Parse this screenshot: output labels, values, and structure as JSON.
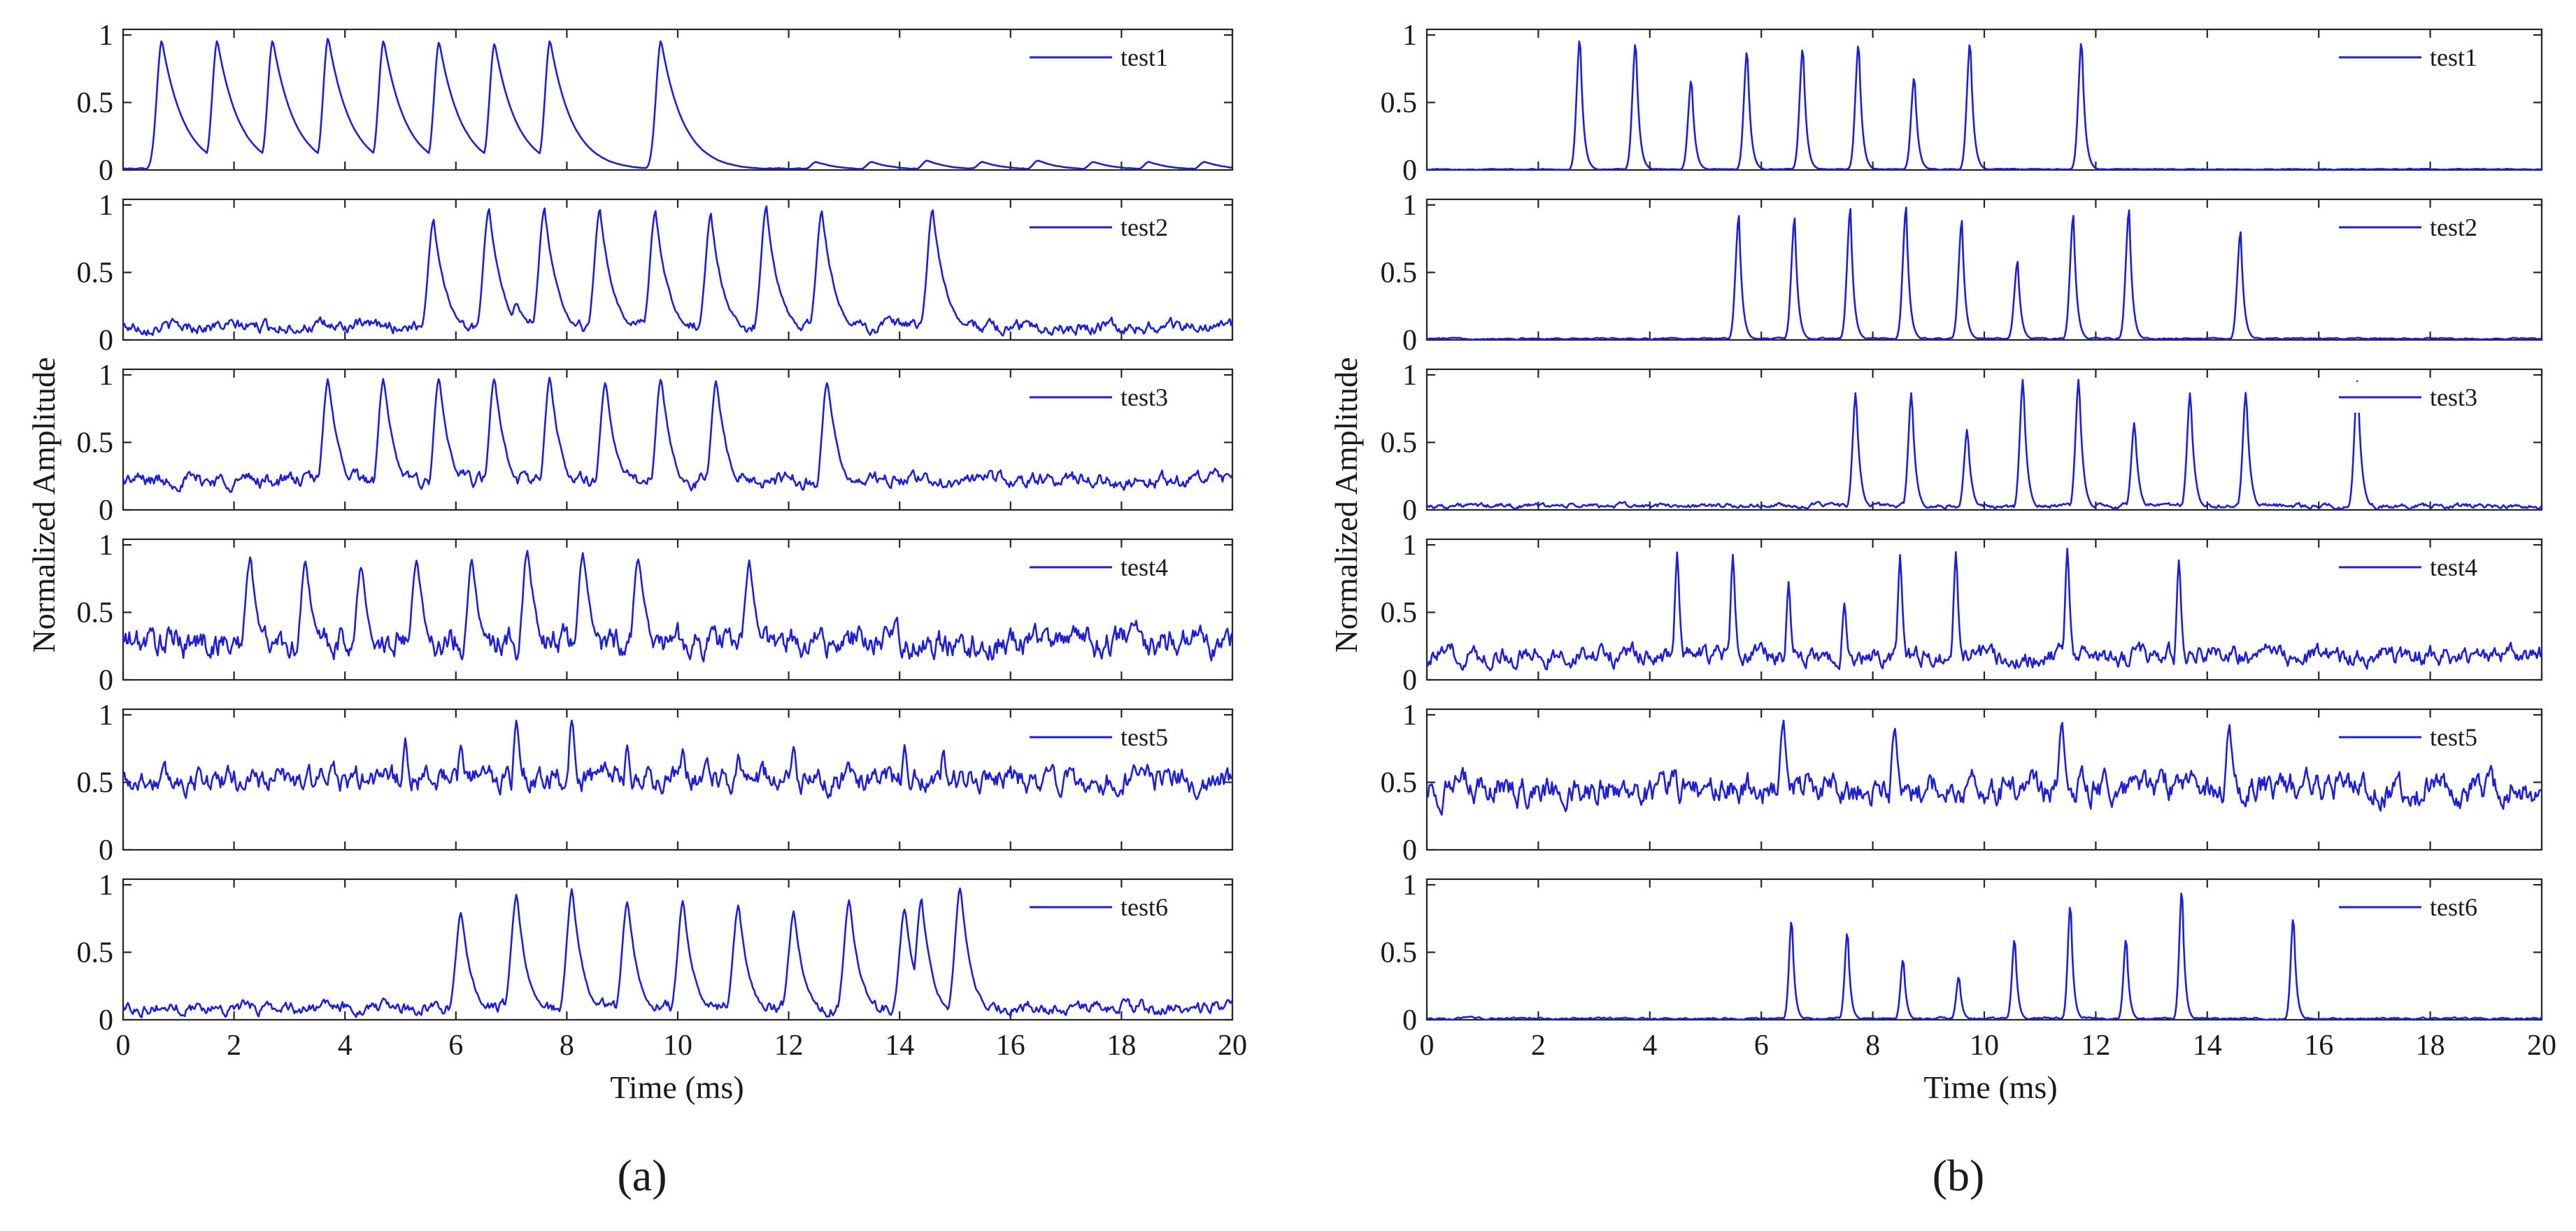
{
  "figure": {
    "panel_labels": [
      "(a)",
      "(b)"
    ],
    "ylabel": "Normalized Amplitude",
    "xlabel": "Time (ms)"
  },
  "chart_data": [
    {
      "type": "line",
      "panel": "(a)",
      "xlabel": "Time (ms)",
      "ylabel": "Normalized Amplitude",
      "xlim": [
        0,
        20
      ],
      "ylim": [
        0,
        1
      ],
      "x_ticks": [
        0,
        2,
        4,
        6,
        8,
        10,
        12,
        14,
        16,
        18,
        20
      ],
      "y_ticks": [
        0,
        0.5,
        1
      ],
      "legend_location": "top-right",
      "series": [
        {
          "name": "test1",
          "baseline": 0.01,
          "noise": 0.004,
          "lead": 0.2,
          "decay": 0.4,
          "width": 0.09,
          "peaks": [
            [
              0.7,
              0.96
            ],
            [
              1.7,
              0.96
            ],
            [
              2.7,
              0.96
            ],
            [
              3.7,
              0.98
            ],
            [
              4.7,
              0.96
            ],
            [
              5.7,
              0.95
            ],
            [
              6.7,
              0.94
            ],
            [
              7.7,
              0.96
            ],
            [
              9.7,
              0.96
            ],
            [
              12.5,
              0.06
            ],
            [
              13.5,
              0.06
            ],
            [
              14.5,
              0.07
            ],
            [
              15.5,
              0.06
            ],
            [
              16.5,
              0.07
            ],
            [
              17.5,
              0.06
            ],
            [
              18.5,
              0.06
            ],
            [
              19.5,
              0.06
            ]
          ]
        },
        {
          "name": "test2",
          "baseline": 0.1,
          "noise": 0.05,
          "lead": 0.4,
          "decay": 0.25,
          "width": 0.1,
          "peaks": [
            [
              5.6,
              0.89
            ],
            [
              6.6,
              0.98
            ],
            [
              7.1,
              0.28
            ],
            [
              7.6,
              0.98
            ],
            [
              8.6,
              0.97
            ],
            [
              9.6,
              0.96
            ],
            [
              10.6,
              0.92
            ],
            [
              11.6,
              0.98
            ],
            [
              12.6,
              0.96
            ],
            [
              14.6,
              0.96
            ]
          ]
        },
        {
          "name": "test3",
          "baseline": 0.22,
          "noise": 0.06,
          "lead": 0.4,
          "decay": 0.25,
          "width": 0.1,
          "peaks": [
            [
              3.7,
              0.98
            ],
            [
              4.7,
              0.97
            ],
            [
              5.7,
              0.97
            ],
            [
              6.7,
              0.98
            ],
            [
              7.7,
              0.97
            ],
            [
              8.7,
              0.96
            ],
            [
              9.7,
              0.98
            ],
            [
              10.7,
              0.96
            ],
            [
              12.7,
              0.96
            ]
          ]
        },
        {
          "name": "test4",
          "baseline": 0.28,
          "noise": 0.12,
          "lead": 0.3,
          "decay": 0.2,
          "width": 0.1,
          "peaks": [
            [
              2.3,
              0.9
            ],
            [
              3.3,
              0.88
            ],
            [
              4.3,
              0.85
            ],
            [
              5.3,
              0.9
            ],
            [
              6.3,
              0.9
            ],
            [
              7.3,
              0.97
            ],
            [
              8.3,
              0.95
            ],
            [
              9.3,
              0.93
            ],
            [
              11.3,
              0.88
            ]
          ]
        },
        {
          "name": "test5",
          "baseline": 0.52,
          "noise": 0.1,
          "lead": 0.3,
          "decay": 0.15,
          "width": 0.08,
          "peaks": [
            [
              5.1,
              0.82
            ],
            [
              6.1,
              0.8
            ],
            [
              7.1,
              0.98
            ],
            [
              8.1,
              0.98
            ],
            [
              9.1,
              0.78
            ],
            [
              10.1,
              0.75
            ],
            [
              11.1,
              0.72
            ],
            [
              12.1,
              0.78
            ],
            [
              14.1,
              0.8
            ],
            [
              14.8,
              0.75
            ]
          ]
        },
        {
          "name": "test6",
          "baseline": 0.09,
          "noise": 0.05,
          "lead": 0.35,
          "decay": 0.2,
          "width": 0.1,
          "peaks": [
            [
              6.1,
              0.8
            ],
            [
              7.1,
              0.92
            ],
            [
              8.1,
              0.97
            ],
            [
              9.1,
              0.88
            ],
            [
              10.1,
              0.88
            ],
            [
              11.1,
              0.85
            ],
            [
              12.1,
              0.8
            ],
            [
              13.1,
              0.9
            ],
            [
              14.1,
              0.82
            ],
            [
              14.4,
              0.88
            ],
            [
              15.1,
              0.98
            ]
          ]
        }
      ]
    },
    {
      "type": "line",
      "panel": "(b)",
      "xlabel": "Time (ms)",
      "ylabel": "Normalized Amplitude",
      "xlim": [
        0,
        20
      ],
      "ylim": [
        0,
        1
      ],
      "x_ticks": [
        0,
        2,
        4,
        6,
        8,
        10,
        12,
        14,
        16,
        18,
        20
      ],
      "y_ticks": [
        0,
        0.5,
        1
      ],
      "legend_location": "top-right",
      "series": [
        {
          "name": "test1",
          "baseline": 0.005,
          "noise": 0.004,
          "lead": 0.1,
          "decay": 0.06,
          "width": 0.06,
          "peaks": [
            [
              2.75,
              0.99
            ],
            [
              3.75,
              0.96
            ],
            [
              4.75,
              0.68
            ],
            [
              5.75,
              0.9
            ],
            [
              6.75,
              0.92
            ],
            [
              7.75,
              0.95
            ],
            [
              8.75,
              0.7
            ],
            [
              9.75,
              0.96
            ],
            [
              11.75,
              0.97
            ]
          ]
        },
        {
          "name": "test2",
          "baseline": 0.01,
          "noise": 0.006,
          "lead": 0.1,
          "decay": 0.06,
          "width": 0.06,
          "peaks": [
            [
              5.6,
              0.92
            ],
            [
              6.6,
              0.9
            ],
            [
              7.6,
              0.97
            ],
            [
              8.6,
              0.98
            ],
            [
              9.6,
              0.88
            ],
            [
              10.6,
              0.58
            ],
            [
              11.6,
              0.92
            ],
            [
              12.6,
              0.96
            ],
            [
              14.6,
              0.8
            ]
          ]
        },
        {
          "name": "test3",
          "baseline": 0.03,
          "noise": 0.02,
          "lead": 0.1,
          "decay": 0.07,
          "width": 0.06,
          "peaks": [
            [
              7.7,
              0.88
            ],
            [
              8.7,
              0.88
            ],
            [
              9.7,
              0.6
            ],
            [
              10.7,
              0.98
            ],
            [
              11.7,
              0.98
            ],
            [
              12.7,
              0.65
            ],
            [
              13.7,
              0.88
            ],
            [
              14.7,
              0.88
            ],
            [
              16.7,
              0.97
            ]
          ]
        },
        {
          "name": "test4",
          "baseline": 0.18,
          "noise": 0.08,
          "lead": 0.1,
          "decay": 0.06,
          "width": 0.05,
          "peaks": [
            [
              4.5,
              0.96
            ],
            [
              5.5,
              0.96
            ],
            [
              6.5,
              0.73
            ],
            [
              7.5,
              0.58
            ],
            [
              8.5,
              0.95
            ],
            [
              9.5,
              0.96
            ],
            [
              11.5,
              0.98
            ],
            [
              13.5,
              0.92
            ]
          ]
        },
        {
          "name": "test5",
          "baseline": 0.45,
          "noise": 0.12,
          "lead": 0.2,
          "decay": 0.15,
          "width": 0.08,
          "peaks": [
            [
              6.4,
              0.95
            ],
            [
              8.4,
              0.9
            ],
            [
              11.4,
              0.98
            ],
            [
              14.4,
              0.94
            ]
          ]
        },
        {
          "name": "test6",
          "baseline": 0.01,
          "noise": 0.008,
          "lead": 0.1,
          "decay": 0.05,
          "width": 0.05,
          "peaks": [
            [
              6.55,
              0.76
            ],
            [
              7.55,
              0.67
            ],
            [
              8.55,
              0.46
            ],
            [
              9.55,
              0.33
            ],
            [
              10.55,
              0.62
            ],
            [
              11.55,
              0.88
            ],
            [
              12.55,
              0.62
            ],
            [
              13.55,
              0.99
            ],
            [
              15.55,
              0.78
            ]
          ]
        }
      ]
    }
  ]
}
